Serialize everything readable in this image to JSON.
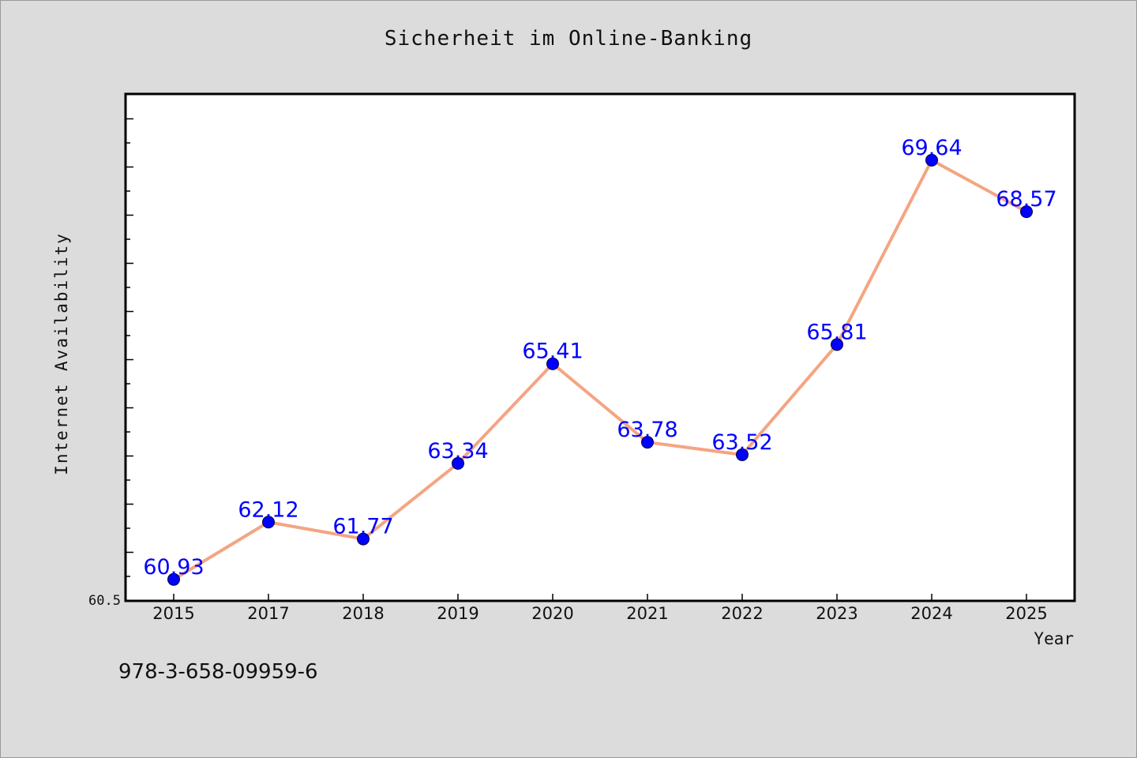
{
  "chart_data": {
    "type": "line",
    "title": "Sicherheit im Online-Banking",
    "xlabel": "Year",
    "ylabel": "Internet Availability",
    "categories": [
      "2015",
      "2017",
      "2018",
      "2019",
      "2020",
      "2021",
      "2022",
      "2023",
      "2024",
      "2025"
    ],
    "series": [
      {
        "values": [
          60.93,
          62.12,
          61.77,
          63.34,
          65.41,
          63.78,
          63.52,
          65.81,
          69.64,
          68.57
        ]
      }
    ],
    "data_labels": [
      "60.93",
      "62.12",
      "61.77",
      "63.34",
      "65.41",
      "63.78",
      "63.52",
      "65.81",
      "69.64",
      "68.57"
    ],
    "ylim": [
      60.5,
      71.0
    ],
    "ytick_label": "60.5",
    "grid": false,
    "line_color": "#f4a582",
    "marker_color": "#0000ff",
    "label_color": "#0000ff"
  },
  "footer": {
    "isbn": "978-3-658-09959-6"
  }
}
